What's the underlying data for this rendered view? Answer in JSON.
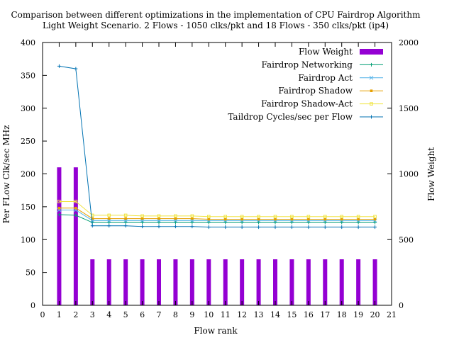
{
  "chart_data": {
    "type": "bar+line",
    "title": "Comparison between different optimizations in the implementation of CPU Fairdrop Algorithm",
    "subtitle": "Light Weight Scenario. 2 Flows - 1050 clks/pkt and 18 Flows - 350 clks/pkt (ip4)",
    "xlabel": "Flow rank",
    "ylabel": "Per FLow Clk/sec MHz",
    "y2label": "Flow Weight",
    "xlim": [
      0,
      21
    ],
    "ylim": [
      0,
      400
    ],
    "y2lim": [
      0,
      2000
    ],
    "xticks": [
      "0",
      "1",
      "2",
      "3",
      "4",
      "5",
      "6",
      "7",
      "8",
      "9",
      "10",
      "11",
      "12",
      "13",
      "14",
      "15",
      "16",
      "17",
      "18",
      "19",
      "20",
      "21"
    ],
    "yticks": [
      "0",
      "50",
      "100",
      "150",
      "200",
      "250",
      "300",
      "350",
      "400"
    ],
    "y2ticks": [
      "0",
      "500",
      "1000",
      "1500",
      "2000"
    ],
    "legend_position": "top-right",
    "grid": false,
    "x": [
      1,
      2,
      3,
      4,
      5,
      6,
      7,
      8,
      9,
      10,
      11,
      12,
      13,
      14,
      15,
      16,
      17,
      18,
      19,
      20
    ],
    "bars": {
      "name": "Flow Weight",
      "axis": "y2",
      "color": "#9400d3",
      "values": [
        1050,
        1050,
        350,
        350,
        350,
        350,
        350,
        350,
        350,
        350,
        350,
        350,
        350,
        350,
        350,
        350,
        350,
        350,
        350,
        350
      ]
    },
    "series": [
      {
        "name": "Fairdrop Networking",
        "color": "#009e73",
        "marker": "plus",
        "values": [
          138,
          137,
          126,
          126,
          126,
          126,
          126,
          126,
          126,
          126,
          126,
          126,
          126,
          126,
          126,
          126,
          126,
          126,
          126,
          126
        ]
      },
      {
        "name": "Fairdrop Act",
        "color": "#56b4e9",
        "marker": "x",
        "values": [
          145,
          145,
          129,
          129,
          129,
          129,
          129,
          129,
          129,
          129,
          129,
          129,
          129,
          129,
          129,
          129,
          129,
          129,
          129,
          129
        ]
      },
      {
        "name": "Fairdrop Shadow",
        "color": "#e69f00",
        "marker": "square",
        "values": [
          148,
          148,
          132,
          132,
          132,
          132,
          132,
          132,
          132,
          131,
          131,
          131,
          131,
          131,
          131,
          131,
          131,
          131,
          131,
          131
        ]
      },
      {
        "name": "Fairdrop Shadow-Act",
        "color": "#f0e442",
        "marker": "open-square",
        "values": [
          158,
          158,
          137,
          137,
          137,
          136,
          136,
          136,
          136,
          135,
          135,
          135,
          135,
          135,
          135,
          135,
          135,
          135,
          135,
          135
        ]
      },
      {
        "name": "Taildrop Cycles/sec per Flow",
        "color": "#0072b2",
        "marker": "plus",
        "values": [
          364,
          360,
          121,
          121,
          121,
          120,
          120,
          120,
          120,
          119,
          119,
          119,
          119,
          119,
          119,
          119,
          119,
          119,
          119,
          119
        ]
      }
    ]
  }
}
